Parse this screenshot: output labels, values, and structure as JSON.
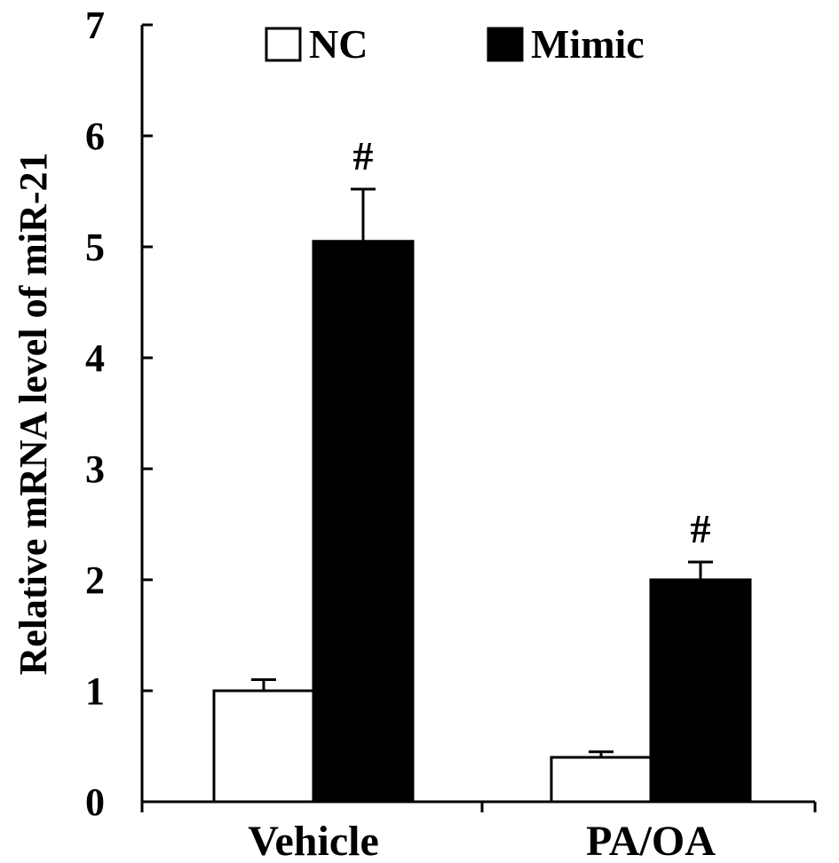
{
  "chart_data": {
    "type": "bar",
    "ylabel": "Relative mRNA level of miR-21",
    "ylim": [
      0,
      7
    ],
    "yticks": [
      0,
      1,
      2,
      3,
      4,
      5,
      6,
      7
    ],
    "categories": [
      "Vehicle",
      "PA/OA"
    ],
    "series": [
      {
        "name": "NC",
        "values": [
          1.0,
          0.4
        ],
        "errors": [
          0.1,
          0.05
        ],
        "color": "#ffffff",
        "annotations": [
          "",
          ""
        ]
      },
      {
        "name": "Mimic",
        "values": [
          5.05,
          2.0
        ],
        "errors": [
          0.47,
          0.16
        ],
        "color": "#000000",
        "annotations": [
          "#",
          "#"
        ]
      }
    ],
    "legend_position": "top",
    "grid": false
  }
}
